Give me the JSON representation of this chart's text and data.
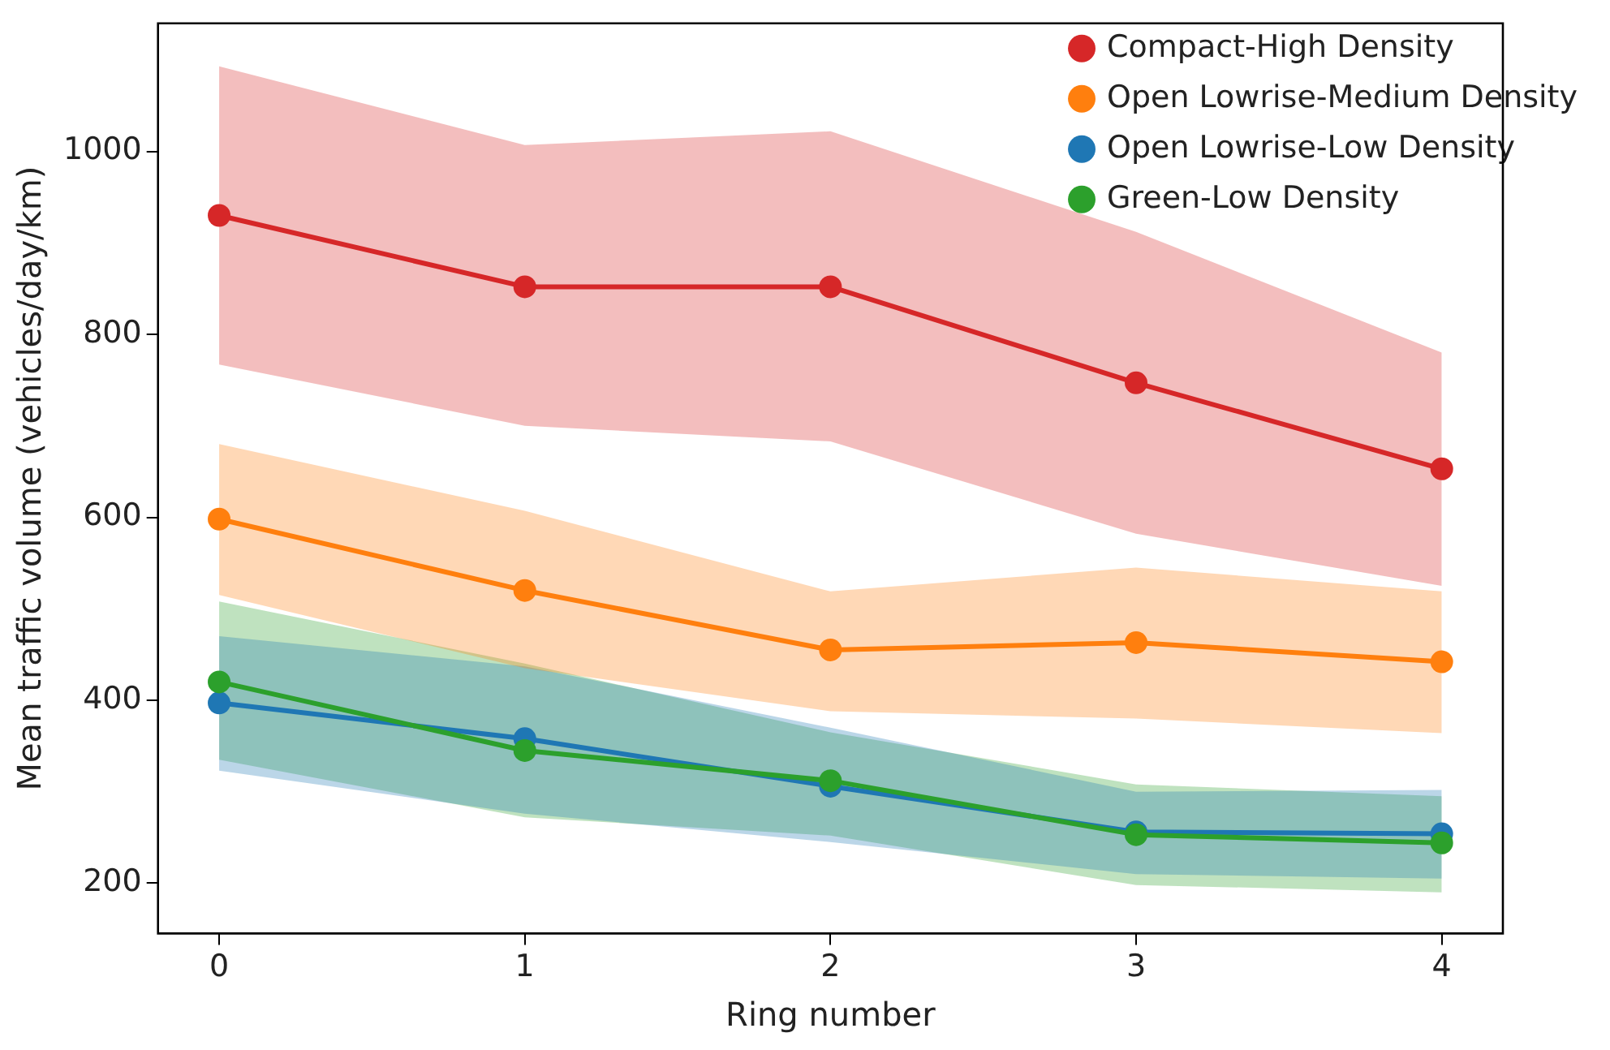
{
  "chart_data": {
    "type": "line",
    "xlabel": "Ring number",
    "ylabel": "Mean traffic volume (vehicles/day/km)",
    "x": [
      0,
      1,
      2,
      3,
      4
    ],
    "xlim": [
      -0.2,
      4.2
    ],
    "xticks": [
      0,
      1,
      2,
      3,
      4
    ],
    "ylim": [
      145,
      1140
    ],
    "yticks": [
      200,
      400,
      600,
      800,
      1000
    ],
    "grid": false,
    "legend": "top right",
    "marker": "circle",
    "line_style": "solid",
    "series": [
      {
        "name": "Compact-High Density",
        "color": "#d62728",
        "values": [
          930,
          852,
          852,
          747,
          653
        ],
        "lower": [
          767,
          700,
          683,
          582,
          525
        ],
        "upper": [
          1093,
          1007,
          1022,
          912,
          780
        ]
      },
      {
        "name": "Open Lowrise-Medium Density",
        "color": "#ff7f0e",
        "values": [
          598,
          520,
          455,
          463,
          442
        ],
        "lower": [
          515,
          435,
          388,
          380,
          364
        ],
        "upper": [
          680,
          607,
          519,
          545,
          519
        ]
      },
      {
        "name": "Open Lowrise-Low Density",
        "color": "#1f77b4",
        "values": [
          397,
          358,
          306,
          256,
          254
        ],
        "lower": [
          323,
          276,
          245,
          210,
          205
        ],
        "upper": [
          470,
          437,
          370,
          300,
          302
        ]
      },
      {
        "name": "Green-Low Density",
        "color": "#2ca02c",
        "values": [
          420,
          345,
          312,
          253,
          244
        ],
        "lower": [
          335,
          272,
          252,
          198,
          190
        ],
        "upper": [
          508,
          440,
          365,
          308,
          295
        ]
      }
    ]
  }
}
